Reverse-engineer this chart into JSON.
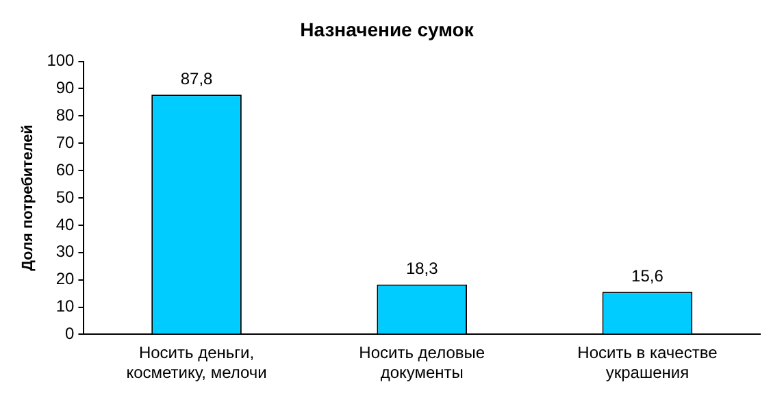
{
  "chart_data": {
    "type": "bar",
    "title": "Назначение сумок",
    "ylabel": "Доля потребителей",
    "categories": [
      "Носить деньги, косметику, мелочи",
      "Носить деловые документы",
      "Носить в качестве украшения"
    ],
    "values": [
      87.8,
      18.3,
      15.6
    ],
    "value_labels": [
      "87,8",
      "18,3",
      "15,6"
    ],
    "color": "#00ccff",
    "ylim": [
      0,
      100
    ],
    "yticks": [
      0,
      10,
      20,
      30,
      40,
      50,
      60,
      70,
      80,
      90,
      100
    ],
    "grid": false,
    "legend": false
  }
}
